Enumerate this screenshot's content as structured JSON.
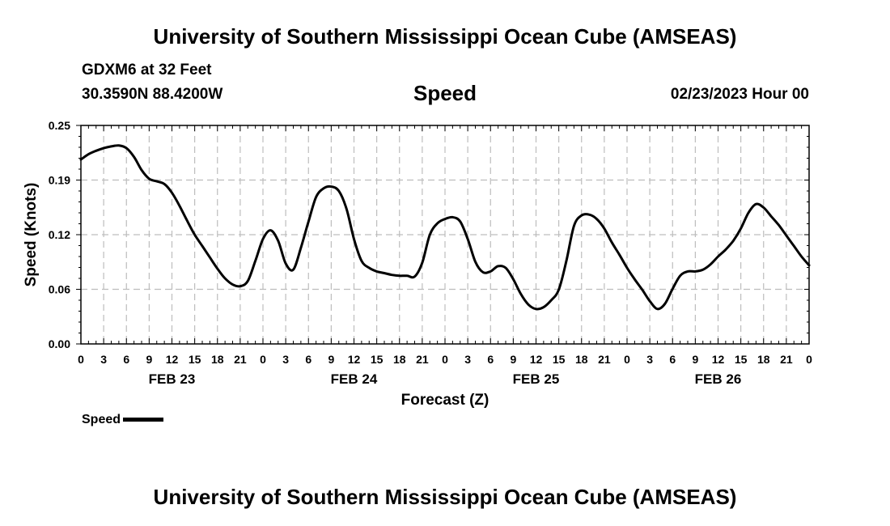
{
  "header": {
    "title": "University of Southern Mississippi Ocean Cube (AMSEAS)",
    "station": "GDXM6 at 32 Feet",
    "coords": "30.3590N  88.4200W",
    "parameter": "Speed",
    "datetime": "02/23/2023 Hour 00"
  },
  "footer": {
    "title": "University of Southern Mississippi Ocean Cube (AMSEAS)"
  },
  "legend": {
    "label": "Speed"
  },
  "chart_data": {
    "type": "line",
    "title": "Speed",
    "xlabel": "Forecast (Z)",
    "ylabel": "Speed (Knots)",
    "xlim": [
      0,
      96
    ],
    "ylim": [
      0,
      0.25
    ],
    "yticks": [
      "0.00",
      "0.06",
      "0.12",
      "0.19",
      "0.25"
    ],
    "ytick_values": [
      0,
      0.0625,
      0.125,
      0.1875,
      0.25
    ],
    "xtick_labels": [
      "0",
      "3",
      "6",
      "9",
      "12",
      "15",
      "18",
      "21",
      "0",
      "3",
      "6",
      "9",
      "12",
      "15",
      "18",
      "21",
      "0",
      "3",
      "6",
      "9",
      "12",
      "15",
      "18",
      "21",
      "0",
      "3",
      "6",
      "9",
      "12",
      "15",
      "18",
      "21",
      "0"
    ],
    "day_labels": [
      "FEB 23",
      "FEB 24",
      "FEB 25",
      "FEB 26"
    ],
    "grid": true,
    "series": [
      {
        "name": "Speed",
        "color": "#000000",
        "x": [
          0,
          1,
          2,
          3,
          4,
          5,
          6,
          7,
          8,
          9,
          10,
          11,
          12,
          13,
          14,
          15,
          16,
          17,
          18,
          19,
          20,
          21,
          22,
          23,
          24,
          25,
          26,
          27,
          28,
          29,
          30,
          31,
          32,
          33,
          34,
          35,
          36,
          37,
          38,
          39,
          40,
          41,
          42,
          43,
          44,
          45,
          46,
          47,
          48,
          49,
          50,
          51,
          52,
          53,
          54,
          55,
          56,
          57,
          58,
          59,
          60,
          61,
          62,
          63,
          64,
          65,
          66,
          67,
          68,
          69,
          70,
          71,
          72,
          73,
          74,
          75,
          76,
          77,
          78,
          79,
          80,
          81,
          82,
          83,
          84,
          85,
          86,
          87,
          88,
          89,
          90,
          91,
          92,
          93,
          94,
          95,
          96
        ],
        "values": [
          0.211,
          0.217,
          0.221,
          0.224,
          0.226,
          0.227,
          0.224,
          0.214,
          0.199,
          0.189,
          0.186,
          0.183,
          0.173,
          0.158,
          0.141,
          0.125,
          0.112,
          0.099,
          0.086,
          0.075,
          0.068,
          0.066,
          0.072,
          0.095,
          0.12,
          0.13,
          0.118,
          0.092,
          0.085,
          0.11,
          0.14,
          0.168,
          0.178,
          0.18,
          0.175,
          0.155,
          0.12,
          0.095,
          0.087,
          0.083,
          0.081,
          0.079,
          0.078,
          0.078,
          0.077,
          0.093,
          0.125,
          0.138,
          0.143,
          0.145,
          0.14,
          0.12,
          0.094,
          0.082,
          0.083,
          0.089,
          0.087,
          0.074,
          0.057,
          0.045,
          0.04,
          0.042,
          0.05,
          0.062,
          0.095,
          0.135,
          0.147,
          0.148,
          0.143,
          0.132,
          0.116,
          0.102,
          0.087,
          0.074,
          0.062,
          0.049,
          0.04,
          0.046,
          0.063,
          0.078,
          0.083,
          0.083,
          0.085,
          0.091,
          0.1,
          0.108,
          0.118,
          0.132,
          0.15,
          0.16,
          0.156,
          0.146,
          0.136,
          0.124,
          0.112,
          0.1,
          0.09
        ]
      }
    ]
  }
}
